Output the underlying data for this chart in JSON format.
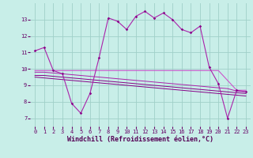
{
  "xlabel": "Windchill (Refroidissement éolien,°C)",
  "bg_color": "#c8eee8",
  "grid_color": "#a0d0c8",
  "line_color_dark": "#880088",
  "line_color_mid": "#aa22aa",
  "line_color_light": "#cc55cc",
  "x": [
    0,
    1,
    2,
    3,
    4,
    5,
    6,
    7,
    8,
    9,
    10,
    11,
    12,
    13,
    14,
    15,
    16,
    17,
    18,
    19,
    20,
    21,
    22,
    23
  ],
  "y_main": [
    11.1,
    11.3,
    9.9,
    9.7,
    7.9,
    7.3,
    8.5,
    10.7,
    13.1,
    12.9,
    12.4,
    13.2,
    13.5,
    13.1,
    13.4,
    13.0,
    12.4,
    12.2,
    12.6,
    10.1,
    9.1,
    7.0,
    8.7,
    8.6
  ],
  "y_ref1": [
    9.9,
    9.9,
    9.9,
    9.9,
    9.9,
    9.9,
    9.9,
    9.9,
    9.9,
    9.9,
    9.9,
    9.9,
    9.9,
    9.9,
    9.9,
    9.9,
    9.9,
    9.9,
    9.9,
    9.9,
    9.9,
    9.3,
    8.7,
    8.7
  ],
  "y_ref2": [
    9.8,
    9.8,
    9.75,
    9.7,
    9.65,
    9.6,
    9.55,
    9.5,
    9.45,
    9.4,
    9.35,
    9.3,
    9.25,
    9.2,
    9.15,
    9.1,
    9.05,
    9.0,
    8.95,
    8.9,
    8.85,
    8.8,
    8.65,
    8.6
  ],
  "y_ref3": [
    9.6,
    9.6,
    9.55,
    9.5,
    9.45,
    9.4,
    9.35,
    9.3,
    9.25,
    9.2,
    9.15,
    9.1,
    9.05,
    9.0,
    8.95,
    8.9,
    8.85,
    8.8,
    8.75,
    8.7,
    8.65,
    8.6,
    8.55,
    8.5
  ],
  "y_ref4": [
    9.5,
    9.45,
    9.4,
    9.35,
    9.3,
    9.25,
    9.2,
    9.15,
    9.1,
    9.05,
    9.0,
    8.95,
    8.9,
    8.85,
    8.8,
    8.75,
    8.7,
    8.65,
    8.6,
    8.55,
    8.5,
    8.45,
    8.4,
    8.35
  ],
  "ylim": [
    6.5,
    14.0
  ],
  "xlim": [
    -0.5,
    23.5
  ],
  "yticks": [
    7,
    8,
    9,
    10,
    11,
    12,
    13
  ],
  "xticks": [
    0,
    1,
    2,
    3,
    4,
    5,
    6,
    7,
    8,
    9,
    10,
    11,
    12,
    13,
    14,
    15,
    16,
    17,
    18,
    19,
    20,
    21,
    22,
    23
  ],
  "tick_fontsize": 5.0,
  "xlabel_fontsize": 6.0
}
